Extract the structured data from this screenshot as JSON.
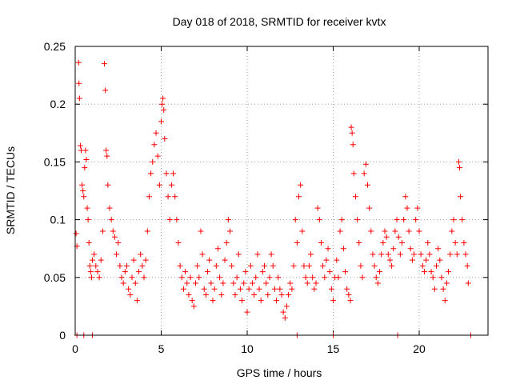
{
  "chart_data": {
    "type": "scatter",
    "title": "Day 018 of 2018, SRMTID for receiver kvtx",
    "xlabel": "GPS time / hours",
    "ylabel": "SRMTID / TECUs",
    "xlim": [
      0,
      24
    ],
    "ylim": [
      0,
      0.25
    ],
    "x_ticks": [
      0,
      5,
      10,
      15,
      20
    ],
    "x_tick_labels": [
      "0",
      "5",
      "10",
      "15",
      "20"
    ],
    "y_ticks": [
      0,
      0.05,
      0.1,
      0.15,
      0.2,
      0.25
    ],
    "y_tick_labels": [
      "0",
      "0.05",
      "0.1",
      "0.15",
      "0.2",
      "0.25"
    ],
    "grid": true,
    "marker": "+",
    "color": "#ff0000",
    "series": [
      {
        "name": "SRMTID",
        "points": [
          [
            0.05,
            0.088
          ],
          [
            0.1,
            0.077
          ],
          [
            0.2,
            0.236
          ],
          [
            0.22,
            0.218
          ],
          [
            0.25,
            0.205
          ],
          [
            0.3,
            0.164
          ],
          [
            0.35,
            0.16
          ],
          [
            0.4,
            0.13
          ],
          [
            0.45,
            0.125
          ],
          [
            0.5,
            0.12
          ],
          [
            0.55,
            0.145
          ],
          [
            0.6,
            0.16
          ],
          [
            0.65,
            0.152
          ],
          [
            0.7,
            0.11
          ],
          [
            0.75,
            0.1
          ],
          [
            0.8,
            0.08
          ],
          [
            0.85,
            0.06
          ],
          [
            0.9,
            0.055
          ],
          [
            0.95,
            0.05
          ],
          [
            1.0,
            0.065
          ],
          [
            1.1,
            0.07
          ],
          [
            1.2,
            0.06
          ],
          [
            1.3,
            0.055
          ],
          [
            1.4,
            0.05
          ],
          [
            1.5,
            0.065
          ],
          [
            1.6,
            0.09
          ],
          [
            1.7,
            0.235
          ],
          [
            1.75,
            0.212
          ],
          [
            1.8,
            0.16
          ],
          [
            1.85,
            0.155
          ],
          [
            1.9,
            0.13
          ],
          [
            2.0,
            0.11
          ],
          [
            2.1,
            0.1
          ],
          [
            2.2,
            0.09
          ],
          [
            2.3,
            0.085
          ],
          [
            2.4,
            0.07
          ],
          [
            2.5,
            0.08
          ],
          [
            2.6,
            0.06
          ],
          [
            2.7,
            0.05
          ],
          [
            2.8,
            0.045
          ],
          [
            2.9,
            0.055
          ],
          [
            3.0,
            0.06
          ],
          [
            3.1,
            0.04
          ],
          [
            3.2,
            0.035
          ],
          [
            3.3,
            0.05
          ],
          [
            3.4,
            0.065
          ],
          [
            3.5,
            0.045
          ],
          [
            3.6,
            0.03
          ],
          [
            3.7,
            0.055
          ],
          [
            3.8,
            0.07
          ],
          [
            3.9,
            0.06
          ],
          [
            4.0,
            0.05
          ],
          [
            4.1,
            0.065
          ],
          [
            4.2,
            0.09
          ],
          [
            4.3,
            0.12
          ],
          [
            4.4,
            0.14
          ],
          [
            4.5,
            0.15
          ],
          [
            4.6,
            0.165
          ],
          [
            4.7,
            0.175
          ],
          [
            4.8,
            0.155
          ],
          [
            4.9,
            0.13
          ],
          [
            5.0,
            0.185
          ],
          [
            5.05,
            0.2
          ],
          [
            5.1,
            0.205
          ],
          [
            5.15,
            0.195
          ],
          [
            5.2,
            0.17
          ],
          [
            5.3,
            0.14
          ],
          [
            5.4,
            0.12
          ],
          [
            5.5,
            0.1
          ],
          [
            5.6,
            0.13
          ],
          [
            5.7,
            0.14
          ],
          [
            5.8,
            0.12
          ],
          [
            5.9,
            0.1
          ],
          [
            6.0,
            0.08
          ],
          [
            6.1,
            0.06
          ],
          [
            6.2,
            0.05
          ],
          [
            6.3,
            0.04
          ],
          [
            6.4,
            0.055
          ],
          [
            6.5,
            0.045
          ],
          [
            6.6,
            0.035
          ],
          [
            6.7,
            0.05
          ],
          [
            6.8,
            0.03
          ],
          [
            6.9,
            0.025
          ],
          [
            7.0,
            0.045
          ],
          [
            7.1,
            0.06
          ],
          [
            7.2,
            0.05
          ],
          [
            7.3,
            0.09
          ],
          [
            7.4,
            0.07
          ],
          [
            7.5,
            0.04
          ],
          [
            7.6,
            0.035
          ],
          [
            7.7,
            0.055
          ],
          [
            7.8,
            0.065
          ],
          [
            7.9,
            0.045
          ],
          [
            8.0,
            0.03
          ],
          [
            8.1,
            0.04
          ],
          [
            8.2,
            0.06
          ],
          [
            8.3,
            0.075
          ],
          [
            8.4,
            0.05
          ],
          [
            8.5,
            0.035
          ],
          [
            8.6,
            0.045
          ],
          [
            8.7,
            0.065
          ],
          [
            8.8,
            0.08
          ],
          [
            8.9,
            0.1
          ],
          [
            9.0,
            0.09
          ],
          [
            9.1,
            0.06
          ],
          [
            9.2,
            0.045
          ],
          [
            9.3,
            0.035
          ],
          [
            9.4,
            0.05
          ],
          [
            9.5,
            0.07
          ],
          [
            9.6,
            0.04
          ],
          [
            9.7,
            0.03
          ],
          [
            9.8,
            0.045
          ],
          [
            9.9,
            0.055
          ],
          [
            10.0,
            0.02
          ],
          [
            10.1,
            0.04
          ],
          [
            10.2,
            0.06
          ],
          [
            10.3,
            0.045
          ],
          [
            10.4,
            0.035
          ],
          [
            10.5,
            0.05
          ],
          [
            10.6,
            0.07
          ],
          [
            10.7,
            0.04
          ],
          [
            10.8,
            0.03
          ],
          [
            10.9,
            0.055
          ],
          [
            11.0,
            0.06
          ],
          [
            11.1,
            0.045
          ],
          [
            11.2,
            0.035
          ],
          [
            11.3,
            0.05
          ],
          [
            11.4,
            0.07
          ],
          [
            11.5,
            0.06
          ],
          [
            11.6,
            0.04
          ],
          [
            11.7,
            0.03
          ],
          [
            11.8,
            0.05
          ],
          [
            11.9,
            0.04
          ],
          [
            12.0,
            0.035
          ],
          [
            12.1,
            0.02
          ],
          [
            12.2,
            0.015
          ],
          [
            12.3,
            0.025
          ],
          [
            12.4,
            0.035
          ],
          [
            12.5,
            0.045
          ],
          [
            12.6,
            0.04
          ],
          [
            12.7,
            0.06
          ],
          [
            12.8,
            0.1
          ],
          [
            12.9,
            0.08
          ],
          [
            13.0,
            0.12
          ],
          [
            13.1,
            0.13
          ],
          [
            13.2,
            0.09
          ],
          [
            13.3,
            0.06
          ],
          [
            13.4,
            0.05
          ],
          [
            13.5,
            0.045
          ],
          [
            13.6,
            0.06
          ],
          [
            13.7,
            0.07
          ],
          [
            13.8,
            0.05
          ],
          [
            13.9,
            0.04
          ],
          [
            14.0,
            0.045
          ],
          [
            14.1,
            0.11
          ],
          [
            14.2,
            0.1
          ],
          [
            14.3,
            0.08
          ],
          [
            14.4,
            0.06
          ],
          [
            14.5,
            0.05
          ],
          [
            14.6,
            0.065
          ],
          [
            14.7,
            0.075
          ],
          [
            14.8,
            0.055
          ],
          [
            14.9,
            0.04
          ],
          [
            15.0,
            0.03
          ],
          [
            15.1,
            0.05
          ],
          [
            15.2,
            0.065
          ],
          [
            15.3,
            0.05
          ],
          [
            15.4,
            0.09
          ],
          [
            15.5,
            0.1
          ],
          [
            15.6,
            0.075
          ],
          [
            15.7,
            0.055
          ],
          [
            15.8,
            0.04
          ],
          [
            15.9,
            0.035
          ],
          [
            16.0,
            0.03
          ],
          [
            16.05,
            0.18
          ],
          [
            16.1,
            0.175
          ],
          [
            16.15,
            0.165
          ],
          [
            16.2,
            0.14
          ],
          [
            16.3,
            0.12
          ],
          [
            16.4,
            0.1
          ],
          [
            16.5,
            0.08
          ],
          [
            16.6,
            0.06
          ],
          [
            16.7,
            0.05
          ],
          [
            16.8,
            0.14
          ],
          [
            16.9,
            0.148
          ],
          [
            17.0,
            0.13
          ],
          [
            17.1,
            0.11
          ],
          [
            17.2,
            0.09
          ],
          [
            17.3,
            0.07
          ],
          [
            17.4,
            0.06
          ],
          [
            17.5,
            0.05
          ],
          [
            17.6,
            0.045
          ],
          [
            17.7,
            0.055
          ],
          [
            17.8,
            0.07
          ],
          [
            17.9,
            0.08
          ],
          [
            18.0,
            0.09
          ],
          [
            18.1,
            0.085
          ],
          [
            18.2,
            0.07
          ],
          [
            18.3,
            0.065
          ],
          [
            18.4,
            0.06
          ],
          [
            18.5,
            0.075
          ],
          [
            18.6,
            0.09
          ],
          [
            18.7,
            0.1
          ],
          [
            18.8,
            0.085
          ],
          [
            18.9,
            0.07
          ],
          [
            19.0,
            0.08
          ],
          [
            19.1,
            0.1
          ],
          [
            19.2,
            0.12
          ],
          [
            19.3,
            0.11
          ],
          [
            19.4,
            0.09
          ],
          [
            19.5,
            0.075
          ],
          [
            19.6,
            0.065
          ],
          [
            19.7,
            0.07
          ],
          [
            19.8,
            0.1
          ],
          [
            19.9,
            0.11
          ],
          [
            20.0,
            0.09
          ],
          [
            20.1,
            0.07
          ],
          [
            20.2,
            0.06
          ],
          [
            20.3,
            0.055
          ],
          [
            20.4,
            0.065
          ],
          [
            20.5,
            0.08
          ],
          [
            20.6,
            0.07
          ],
          [
            20.7,
            0.055
          ],
          [
            20.8,
            0.05
          ],
          [
            20.9,
            0.04
          ],
          [
            21.0,
            0.06
          ],
          [
            21.1,
            0.075
          ],
          [
            21.2,
            0.065
          ],
          [
            21.3,
            0.05
          ],
          [
            21.4,
            0.04
          ],
          [
            21.5,
            0.03
          ],
          [
            21.6,
            0.045
          ],
          [
            21.7,
            0.055
          ],
          [
            21.8,
            0.07
          ],
          [
            21.9,
            0.09
          ],
          [
            22.0,
            0.1
          ],
          [
            22.1,
            0.08
          ],
          [
            22.2,
            0.07
          ],
          [
            22.3,
            0.15
          ],
          [
            22.35,
            0.145
          ],
          [
            22.4,
            0.12
          ],
          [
            22.5,
            0.1
          ],
          [
            22.6,
            0.08
          ],
          [
            22.7,
            0.07
          ],
          [
            22.8,
            0.06
          ],
          [
            22.85,
            0.045
          ],
          [
            0.1,
            0.0
          ],
          [
            0.5,
            0.0
          ],
          [
            1.0,
            0.0
          ],
          [
            12.9,
            0.0
          ],
          [
            15.0,
            0.0
          ],
          [
            18.75,
            0.0
          ],
          [
            23.0,
            0.0
          ]
        ]
      }
    ]
  }
}
